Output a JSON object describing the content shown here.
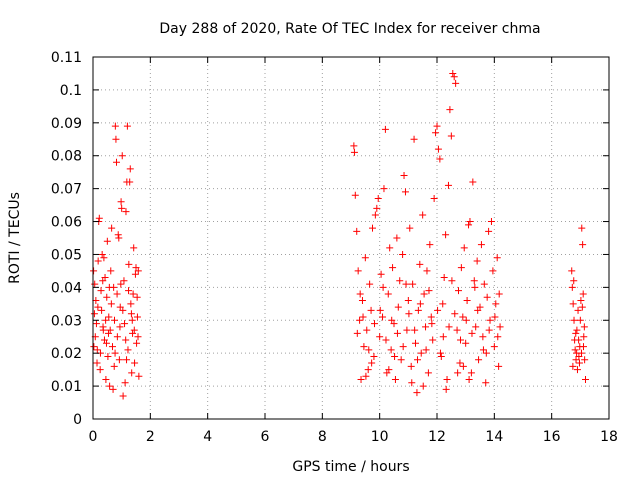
{
  "chart_data": {
    "type": "scatter",
    "title": "Day 288 of 2020, Rate Of TEC Index for receiver chma",
    "xlabel": "GPS time / hours",
    "ylabel": "ROTI / TECUs",
    "xlim": [
      0,
      18
    ],
    "ylim": [
      0,
      0.11
    ],
    "xticks": [
      0,
      2,
      4,
      6,
      8,
      10,
      12,
      14,
      16,
      18
    ],
    "xtick_labels": [
      "0",
      "2",
      "4",
      "6",
      "8",
      "10",
      "12",
      "14",
      "16",
      "18"
    ],
    "yticks": [
      0,
      0.01,
      0.02,
      0.03,
      0.04,
      0.05,
      0.06,
      0.07,
      0.08,
      0.09,
      0.1,
      0.11
    ],
    "ytick_labels": [
      "0",
      "0.01",
      "0.02",
      "0.03",
      "0.04",
      "0.05",
      "0.06",
      "0.07",
      "0.08",
      "0.09",
      "0.1",
      "0.11"
    ],
    "grid": true,
    "marker": "+",
    "color": "#ff0000",
    "series": [
      {
        "points": [
          [
            0.02,
            0.045
          ],
          [
            0.05,
            0.032
          ],
          [
            0.08,
            0.025
          ],
          [
            0.1,
            0.036
          ],
          [
            0.12,
            0.029
          ],
          [
            0.15,
            0.021
          ],
          [
            0.18,
            0.048
          ],
          [
            0.2,
            0.06
          ],
          [
            0.22,
            0.061
          ],
          [
            0.25,
            0.015
          ],
          [
            0.28,
            0.039
          ],
          [
            0.3,
            0.033
          ],
          [
            0.32,
            0.05
          ],
          [
            0.35,
            0.028
          ],
          [
            0.38,
            0.049
          ],
          [
            0.4,
            0.024
          ],
          [
            0.42,
            0.043
          ],
          [
            0.45,
            0.012
          ],
          [
            0.48,
            0.037
          ],
          [
            0.5,
            0.054
          ],
          [
            0.52,
            0.019
          ],
          [
            0.55,
            0.031
          ],
          [
            0.58,
            0.01
          ],
          [
            0.6,
            0.027
          ],
          [
            0.62,
            0.045
          ],
          [
            0.65,
            0.058
          ],
          [
            0.68,
            0.022
          ],
          [
            0.7,
            0.009
          ],
          [
            0.72,
            0.04
          ],
          [
            0.75,
            0.03
          ],
          [
            0.78,
            0.089
          ],
          [
            0.8,
            0.085
          ],
          [
            0.82,
            0.078
          ],
          [
            0.85,
            0.025
          ],
          [
            0.88,
            0.056
          ],
          [
            0.9,
            0.055
          ],
          [
            0.92,
            0.018
          ],
          [
            0.95,
            0.034
          ],
          [
            0.98,
            0.066
          ],
          [
            1.0,
            0.064
          ],
          [
            1.02,
            0.08
          ],
          [
            1.05,
            0.007
          ],
          [
            1.08,
            0.042
          ],
          [
            1.1,
            0.029
          ],
          [
            1.12,
            0.011
          ],
          [
            1.15,
            0.063
          ],
          [
            1.18,
            0.072
          ],
          [
            1.2,
            0.089
          ],
          [
            1.22,
            0.021
          ],
          [
            1.25,
            0.047
          ],
          [
            1.28,
            0.072
          ],
          [
            1.3,
            0.076
          ],
          [
            1.32,
            0.035
          ],
          [
            1.35,
            0.014
          ],
          [
            1.38,
            0.026
          ],
          [
            1.4,
            0.038
          ],
          [
            1.42,
            0.052
          ],
          [
            1.45,
            0.017
          ],
          [
            1.48,
            0.044
          ],
          [
            1.5,
            0.046
          ],
          [
            1.52,
            0.023
          ],
          [
            1.55,
            0.031
          ],
          [
            1.58,
            0.045
          ],
          [
            1.6,
            0.013
          ],
          [
            0.06,
            0.041
          ],
          [
            0.14,
            0.017
          ],
          [
            0.26,
            0.02
          ],
          [
            0.34,
            0.042
          ],
          [
            0.44,
            0.03
          ],
          [
            0.54,
            0.026
          ],
          [
            0.64,
            0.035
          ],
          [
            0.74,
            0.016
          ],
          [
            0.84,
            0.038
          ],
          [
            0.94,
            0.028
          ],
          [
            1.04,
            0.033
          ],
          [
            1.14,
            0.024
          ],
          [
            1.24,
            0.039
          ],
          [
            1.34,
            0.032
          ],
          [
            1.44,
            0.027
          ],
          [
            1.54,
            0.037
          ],
          [
            0.03,
            0.022
          ],
          [
            0.17,
            0.034
          ],
          [
            0.36,
            0.027
          ],
          [
            0.57,
            0.04
          ],
          [
            0.77,
            0.02
          ],
          [
            0.97,
            0.041
          ],
          [
            1.17,
            0.018
          ],
          [
            1.37,
            0.03
          ],
          [
            1.57,
            0.025
          ],
          [
            0.47,
            0.023
          ]
        ]
      },
      {
        "points": [
          [
            9.1,
            0.083
          ],
          [
            9.12,
            0.081
          ],
          [
            9.15,
            0.068
          ],
          [
            9.2,
            0.057
          ],
          [
            9.25,
            0.045
          ],
          [
            9.3,
            0.03
          ],
          [
            9.35,
            0.012
          ],
          [
            9.4,
            0.036
          ],
          [
            9.45,
            0.022
          ],
          [
            9.5,
            0.049
          ],
          [
            9.55,
            0.027
          ],
          [
            9.6,
            0.015
          ],
          [
            9.65,
            0.041
          ],
          [
            9.7,
            0.033
          ],
          [
            9.75,
            0.058
          ],
          [
            9.8,
            0.019
          ],
          [
            9.85,
            0.062
          ],
          [
            9.9,
            0.064
          ],
          [
            9.95,
            0.067
          ],
          [
            10.0,
            0.025
          ],
          [
            10.05,
            0.044
          ],
          [
            10.1,
            0.031
          ],
          [
            10.15,
            0.07
          ],
          [
            10.2,
            0.088
          ],
          [
            10.25,
            0.014
          ],
          [
            10.3,
            0.038
          ],
          [
            10.35,
            0.052
          ],
          [
            10.4,
            0.021
          ],
          [
            10.45,
            0.046
          ],
          [
            10.5,
            0.029
          ],
          [
            10.55,
            0.012
          ],
          [
            10.6,
            0.055
          ],
          [
            10.65,
            0.034
          ],
          [
            10.7,
            0.042
          ],
          [
            10.75,
            0.018
          ],
          [
            10.8,
            0.05
          ],
          [
            10.85,
            0.074
          ],
          [
            10.9,
            0.069
          ],
          [
            10.95,
            0.027
          ],
          [
            11.0,
            0.036
          ],
          [
            11.05,
            0.058
          ],
          [
            11.1,
            0.016
          ],
          [
            11.15,
            0.041
          ],
          [
            11.2,
            0.085
          ],
          [
            11.25,
            0.023
          ],
          [
            11.3,
            0.008
          ],
          [
            11.35,
            0.033
          ],
          [
            11.4,
            0.047
          ],
          [
            11.45,
            0.02
          ],
          [
            11.5,
            0.062
          ],
          [
            11.55,
            0.038
          ],
          [
            11.6,
            0.028
          ],
          [
            11.65,
            0.045
          ],
          [
            11.7,
            0.014
          ],
          [
            11.75,
            0.053
          ],
          [
            11.8,
            0.031
          ],
          [
            11.85,
            0.024
          ],
          [
            11.9,
            0.067
          ],
          [
            11.95,
            0.087
          ],
          [
            12.0,
            0.089
          ],
          [
            12.05,
            0.082
          ],
          [
            12.1,
            0.079
          ],
          [
            12.15,
            0.019
          ],
          [
            12.2,
            0.035
          ],
          [
            12.25,
            0.043
          ],
          [
            12.3,
            0.056
          ],
          [
            12.35,
            0.012
          ],
          [
            12.4,
            0.071
          ],
          [
            12.45,
            0.094
          ],
          [
            12.5,
            0.086
          ],
          [
            12.55,
            0.105
          ],
          [
            12.6,
            0.104
          ],
          [
            12.65,
            0.102
          ],
          [
            12.7,
            0.027
          ],
          [
            12.75,
            0.039
          ],
          [
            12.8,
            0.017
          ],
          [
            12.85,
            0.046
          ],
          [
            12.9,
            0.031
          ],
          [
            12.95,
            0.052
          ],
          [
            13.0,
            0.023
          ],
          [
            13.05,
            0.036
          ],
          [
            13.1,
            0.059
          ],
          [
            13.15,
            0.06
          ],
          [
            13.2,
            0.014
          ],
          [
            13.25,
            0.072
          ],
          [
            13.3,
            0.042
          ],
          [
            13.35,
            0.028
          ],
          [
            13.4,
            0.048
          ],
          [
            13.45,
            0.018
          ],
          [
            13.5,
            0.034
          ],
          [
            13.55,
            0.053
          ],
          [
            13.6,
            0.025
          ],
          [
            13.65,
            0.041
          ],
          [
            13.7,
            0.011
          ],
          [
            13.75,
            0.037
          ],
          [
            13.8,
            0.057
          ],
          [
            13.85,
            0.03
          ],
          [
            13.9,
            0.06
          ],
          [
            13.95,
            0.045
          ],
          [
            14.0,
            0.022
          ],
          [
            14.05,
            0.035
          ],
          [
            14.1,
            0.049
          ],
          [
            14.15,
            0.016
          ],
          [
            14.2,
            0.028
          ],
          [
            9.22,
            0.026
          ],
          [
            9.42,
            0.031
          ],
          [
            9.62,
            0.021
          ],
          [
            9.82,
            0.029
          ],
          [
            10.02,
            0.033
          ],
          [
            10.22,
            0.024
          ],
          [
            10.42,
            0.03
          ],
          [
            10.62,
            0.026
          ],
          [
            10.82,
            0.022
          ],
          [
            11.02,
            0.032
          ],
          [
            11.22,
            0.027
          ],
          [
            11.42,
            0.035
          ],
          [
            11.62,
            0.021
          ],
          [
            11.82,
            0.029
          ],
          [
            12.02,
            0.033
          ],
          [
            12.22,
            0.025
          ],
          [
            12.42,
            0.028
          ],
          [
            12.62,
            0.032
          ],
          [
            12.82,
            0.024
          ],
          [
            13.02,
            0.03
          ],
          [
            13.22,
            0.026
          ],
          [
            13.42,
            0.033
          ],
          [
            13.62,
            0.021
          ],
          [
            13.82,
            0.027
          ],
          [
            14.02,
            0.031
          ],
          [
            14.12,
            0.025
          ],
          [
            9.32,
            0.038
          ],
          [
            9.72,
            0.017
          ],
          [
            10.12,
            0.04
          ],
          [
            10.52,
            0.019
          ],
          [
            10.92,
            0.041
          ],
          [
            11.32,
            0.018
          ],
          [
            11.72,
            0.039
          ],
          [
            12.12,
            0.02
          ],
          [
            12.52,
            0.042
          ],
          [
            12.92,
            0.016
          ],
          [
            13.32,
            0.04
          ],
          [
            13.72,
            0.02
          ],
          [
            14.17,
            0.038
          ],
          [
            11.12,
            0.011
          ],
          [
            11.52,
            0.01
          ],
          [
            12.32,
            0.009
          ],
          [
            13.12,
            0.012
          ],
          [
            9.52,
            0.013
          ],
          [
            10.32,
            0.015
          ],
          [
            12.72,
            0.014
          ]
        ]
      },
      {
        "points": [
          [
            16.7,
            0.045
          ],
          [
            16.72,
            0.04
          ],
          [
            16.75,
            0.035
          ],
          [
            16.78,
            0.03
          ],
          [
            16.8,
            0.024
          ],
          [
            16.82,
            0.021
          ],
          [
            16.85,
            0.018
          ],
          [
            16.88,
            0.027
          ],
          [
            16.9,
            0.015
          ],
          [
            16.92,
            0.033
          ],
          [
            16.95,
            0.019
          ],
          [
            16.98,
            0.022
          ],
          [
            17.0,
            0.03
          ],
          [
            17.02,
            0.036
          ],
          [
            17.05,
            0.058
          ],
          [
            17.08,
            0.053
          ],
          [
            17.1,
            0.038
          ],
          [
            17.12,
            0.025
          ],
          [
            17.15,
            0.018
          ],
          [
            17.18,
            0.012
          ],
          [
            16.74,
            0.016
          ],
          [
            16.84,
            0.026
          ],
          [
            16.94,
            0.024
          ],
          [
            17.04,
            0.02
          ],
          [
            17.14,
            0.028
          ],
          [
            16.77,
            0.042
          ],
          [
            17.07,
            0.034
          ],
          [
            16.87,
            0.02
          ],
          [
            17.11,
            0.022
          ],
          [
            16.97,
            0.017
          ]
        ]
      }
    ]
  }
}
